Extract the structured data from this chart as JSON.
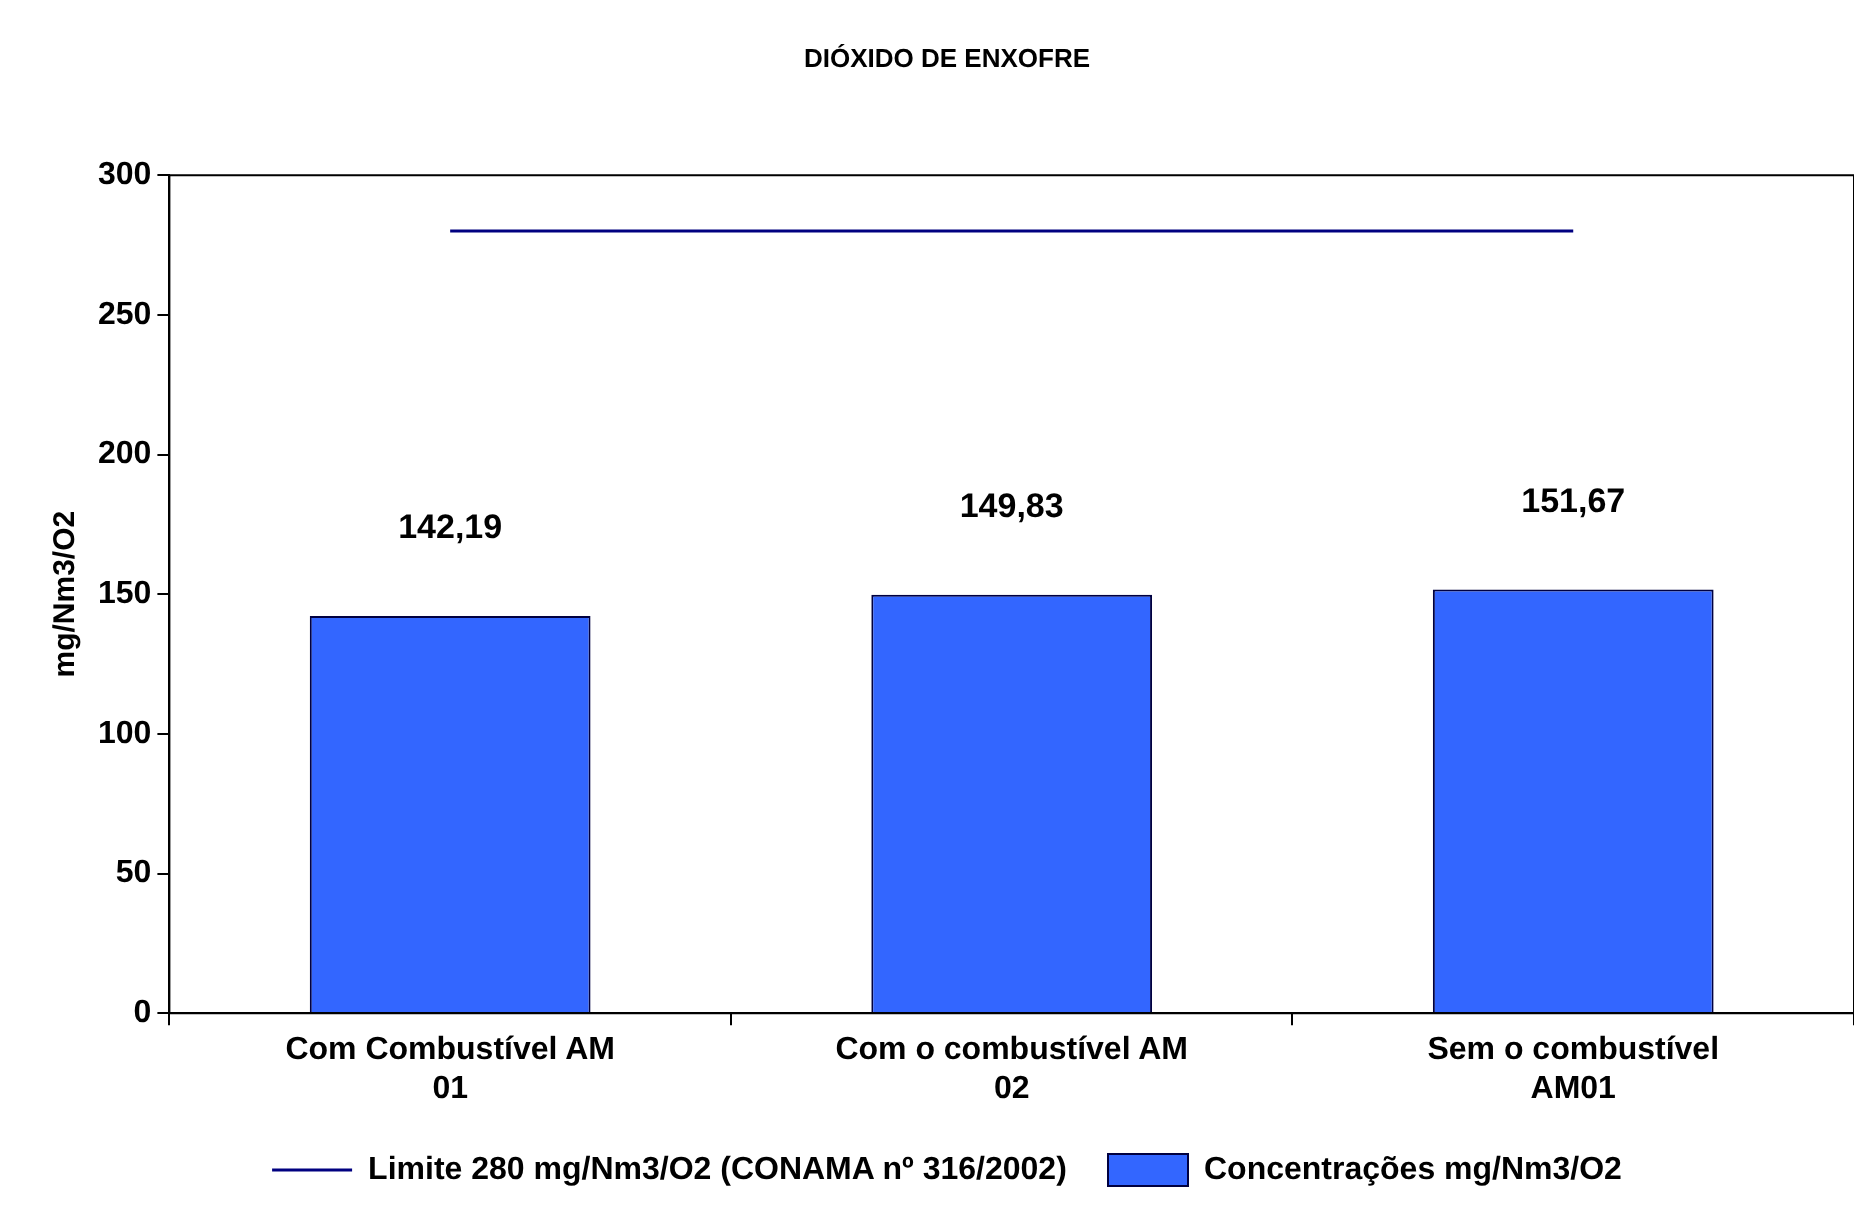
{
  "chart_data": {
    "type": "bar",
    "title": "DIÓXIDO DE ENXOFRE",
    "ylabel": "mg/Nm3/O2",
    "categories": [
      "Com Combustível AM 01",
      "Com o combustível AM 02",
      "Sem o combustível AM01"
    ],
    "series": [
      {
        "name": "Concentrações mg/Nm3/O2",
        "color": "#3366ff",
        "values": [
          142.19,
          149.83,
          151.67
        ],
        "value_labels": [
          "142,19",
          "149,83",
          "151,67"
        ]
      },
      {
        "name": "Limite 280 mg/Nm3/O2 (CONAMA nº 316/2002)",
        "type": "line",
        "color": "#000080",
        "values": [
          280,
          280,
          280
        ]
      }
    ],
    "ylim": [
      0,
      300
    ],
    "yticks": [
      0,
      50,
      100,
      150,
      200,
      250,
      300
    ],
    "grid": false,
    "legend": "bottom",
    "marker": "none",
    "line_style": "solid"
  }
}
